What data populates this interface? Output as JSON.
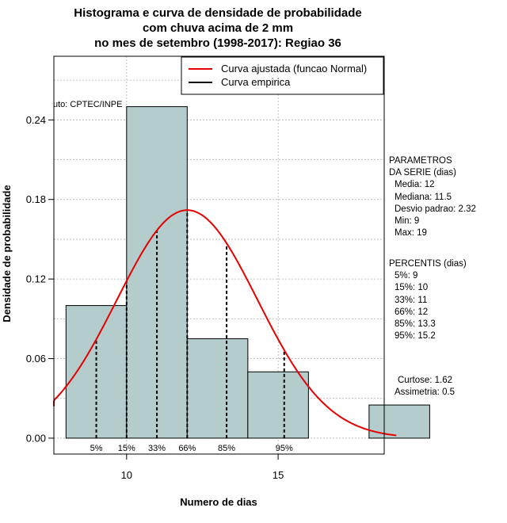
{
  "chart_data": {
    "type": "bar",
    "title": [
      "Histograma e curva de densidade de probabilidade",
      "com chuva acima de 2 mm",
      "no mes de setembro (1998-2017): Regiao 36"
    ],
    "xlabel": "Numero de dias",
    "ylabel": "Densidade de probabilidade",
    "xlim": [
      7.6,
      18.5
    ],
    "ylim": [
      -0.012,
      0.288
    ],
    "x_ticks": [
      10,
      15
    ],
    "y_ticks": [
      0.0,
      0.06,
      0.12,
      0.18,
      0.24
    ],
    "y_tick_labels": [
      "0.00",
      "0.06",
      "0.12",
      "0.18",
      "0.24"
    ],
    "bins": [
      {
        "start": 8,
        "end": 10,
        "density": 0.1
      },
      {
        "start": 10,
        "end": 12,
        "density": 0.25
      },
      {
        "start": 12,
        "end": 14,
        "density": 0.075
      },
      {
        "start": 14,
        "end": 16,
        "density": 0.05
      },
      {
        "start": 16,
        "end": 18,
        "density": 0.0
      },
      {
        "start": 18,
        "end": 20,
        "density": 0.025
      }
    ],
    "fit_curve": {
      "name": "Curva ajustada (funcao Normal)",
      "mean": 12,
      "sd": 2.32,
      "x_from": 7.4,
      "x_to": 18.9
    },
    "empirical_curve": {
      "name": "Curva empirica"
    },
    "percentile_markers": [
      {
        "label": "5%",
        "x": 9
      },
      {
        "label": "15%",
        "x": 10
      },
      {
        "label": "33%",
        "x": 11
      },
      {
        "label": "66%",
        "x": 12
      },
      {
        "label": "85%",
        "x": 13.3
      },
      {
        "label": "95%",
        "x": 15.2
      }
    ],
    "annotation": "uto: CPTEC/INPE",
    "legend_position": "top-right",
    "grid": true
  },
  "colors": {
    "bar_fill": "#b5cccc",
    "fit_curve": "#e60000",
    "empirical_curve": "#000000",
    "grid": "#b0b0b0"
  },
  "side": {
    "params_title_1": "PARAMETROS",
    "params_title_2": "DA SERIE (dias)",
    "media": "Media: 12",
    "mediana": "Mediana: 11.5",
    "desvio": "Desvio padrao: 2.32",
    "min": "Min: 9",
    "max": "Max: 19",
    "perc_title": "PERCENTIS (dias)",
    "p5": "5%: 9",
    "p15": "15%: 10",
    "p33": "33%: 11",
    "p66": "66%: 12",
    "p85": "85%: 13.3",
    "p95": "95%: 15.2",
    "curtose": "Curtose: 1.62",
    "assimetria": "Assimetria: 0.5"
  }
}
